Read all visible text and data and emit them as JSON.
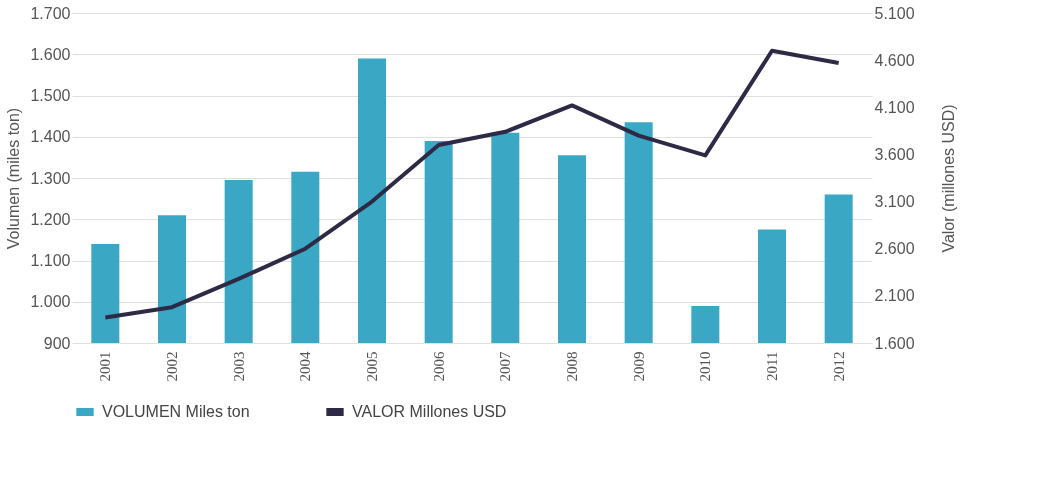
{
  "chart_data": {
    "type": "bar",
    "ylabel": "Volumen (miles ton)",
    "y2label": "Valor (millones USD)",
    "categories": [
      "2001",
      "2002",
      "2003",
      "2004",
      "2005",
      "2006",
      "2007",
      "2008",
      "2009",
      "2010",
      "2011",
      "2012"
    ],
    "series": [
      {
        "name": "VOLUMEN Miles ton",
        "color": "#3aa7c4",
        "values": [
          1140,
          1210,
          1295,
          1315,
          1590,
          1390,
          1410,
          1355,
          1435,
          990,
          1175,
          1260
        ]
      },
      {
        "name": "VALOR Millones USD",
        "type": "line",
        "axis": "y2",
        "color": "#2e2a45",
        "values": [
          1870,
          1980,
          2280,
          2600,
          3100,
          3700,
          3840,
          4120,
          3800,
          3590,
          4700,
          4570
        ]
      }
    ],
    "ylim": [
      900,
      1700
    ],
    "yticks": [
      {
        "value": 900,
        "label": "900"
      },
      {
        "value": 1000,
        "label": "1.000"
      },
      {
        "value": 1100,
        "label": "1.100"
      },
      {
        "value": 1200,
        "label": "1.200"
      },
      {
        "value": 1300,
        "label": "1.300"
      },
      {
        "value": 1400,
        "label": "1.400"
      },
      {
        "value": 1500,
        "label": "1.500"
      },
      {
        "value": 1600,
        "label": "1.600"
      },
      {
        "value": 1700,
        "label": "1.700"
      }
    ],
    "y2lim": [
      1600,
      5100
    ],
    "y2ticks": [
      {
        "value": 1600,
        "label": "1.600"
      },
      {
        "value": 2100,
        "label": "2.100"
      },
      {
        "value": 2600,
        "label": "2.600"
      },
      {
        "value": 3100,
        "label": "3.100"
      },
      {
        "value": 3600,
        "label": "3.600"
      },
      {
        "value": 4100,
        "label": "4.100"
      },
      {
        "value": 4600,
        "label": "4.600"
      },
      {
        "value": 5100,
        "label": "5.100"
      }
    ],
    "grid": "y",
    "legend": "bottom",
    "marker": "none",
    "line_style": "solid"
  }
}
